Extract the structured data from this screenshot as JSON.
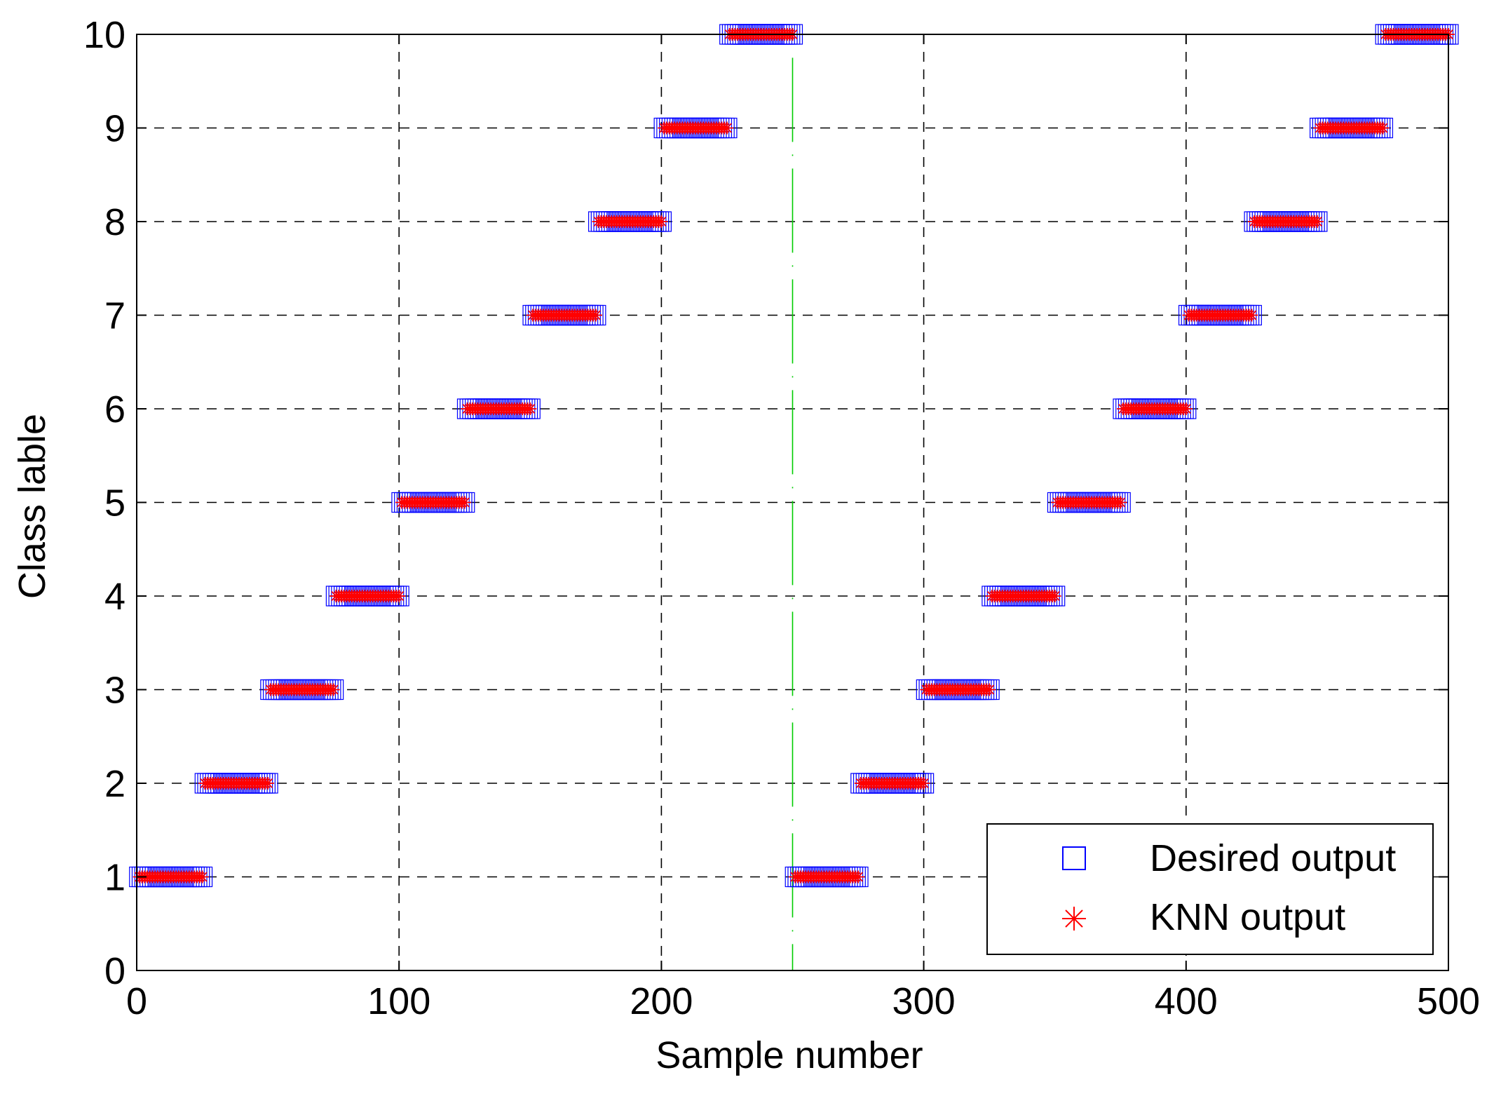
{
  "chart_data": {
    "type": "scatter",
    "title": "",
    "xlabel": "Sample number",
    "ylabel": "Class lable",
    "xlim": [
      0,
      500
    ],
    "ylim": [
      0,
      10
    ],
    "xticks": [
      "0",
      "100",
      "200",
      "300",
      "400",
      "500"
    ],
    "yticks": [
      "0",
      "1",
      "2",
      "3",
      "4",
      "5",
      "6",
      "7",
      "8",
      "9",
      "10"
    ],
    "grid": true,
    "legend_position": "bottom-right",
    "divider_x": 250,
    "series": [
      {
        "name": "Desired output",
        "marker": "square",
        "color": "#0000ff",
        "segments": [
          {
            "x_start": 1,
            "x_end": 25,
            "class": 1
          },
          {
            "x_start": 26,
            "x_end": 50,
            "class": 2
          },
          {
            "x_start": 51,
            "x_end": 75,
            "class": 3
          },
          {
            "x_start": 76,
            "x_end": 100,
            "class": 4
          },
          {
            "x_start": 101,
            "x_end": 125,
            "class": 5
          },
          {
            "x_start": 126,
            "x_end": 150,
            "class": 6
          },
          {
            "x_start": 151,
            "x_end": 175,
            "class": 7
          },
          {
            "x_start": 176,
            "x_end": 200,
            "class": 8
          },
          {
            "x_start": 201,
            "x_end": 225,
            "class": 9
          },
          {
            "x_start": 226,
            "x_end": 250,
            "class": 10
          },
          {
            "x_start": 251,
            "x_end": 275,
            "class": 1
          },
          {
            "x_start": 276,
            "x_end": 300,
            "class": 2
          },
          {
            "x_start": 301,
            "x_end": 325,
            "class": 3
          },
          {
            "x_start": 326,
            "x_end": 350,
            "class": 4
          },
          {
            "x_start": 351,
            "x_end": 375,
            "class": 5
          },
          {
            "x_start": 376,
            "x_end": 400,
            "class": 6
          },
          {
            "x_start": 401,
            "x_end": 425,
            "class": 7
          },
          {
            "x_start": 426,
            "x_end": 450,
            "class": 8
          },
          {
            "x_start": 451,
            "x_end": 475,
            "class": 9
          },
          {
            "x_start": 476,
            "x_end": 500,
            "class": 10
          }
        ]
      },
      {
        "name": "KNN output",
        "marker": "asterisk",
        "color": "#ff0000",
        "segments": [
          {
            "x_start": 1,
            "x_end": 25,
            "class": 1
          },
          {
            "x_start": 26,
            "x_end": 50,
            "class": 2
          },
          {
            "x_start": 51,
            "x_end": 75,
            "class": 3
          },
          {
            "x_start": 76,
            "x_end": 100,
            "class": 4
          },
          {
            "x_start": 101,
            "x_end": 125,
            "class": 5
          },
          {
            "x_start": 126,
            "x_end": 150,
            "class": 6
          },
          {
            "x_start": 151,
            "x_end": 175,
            "class": 7
          },
          {
            "x_start": 176,
            "x_end": 200,
            "class": 8
          },
          {
            "x_start": 201,
            "x_end": 225,
            "class": 9
          },
          {
            "x_start": 226,
            "x_end": 250,
            "class": 10
          },
          {
            "x_start": 251,
            "x_end": 275,
            "class": 1
          },
          {
            "x_start": 276,
            "x_end": 300,
            "class": 2
          },
          {
            "x_start": 301,
            "x_end": 325,
            "class": 3
          },
          {
            "x_start": 326,
            "x_end": 350,
            "class": 4
          },
          {
            "x_start": 351,
            "x_end": 375,
            "class": 5
          },
          {
            "x_start": 376,
            "x_end": 400,
            "class": 6
          },
          {
            "x_start": 401,
            "x_end": 425,
            "class": 7
          },
          {
            "x_start": 426,
            "x_end": 450,
            "class": 8
          },
          {
            "x_start": 451,
            "x_end": 475,
            "class": 9
          },
          {
            "x_start": 476,
            "x_end": 500,
            "class": 10
          }
        ]
      }
    ],
    "colors": {
      "grid": "#000000",
      "divider": "#00cc00",
      "axes": "#000000"
    }
  }
}
